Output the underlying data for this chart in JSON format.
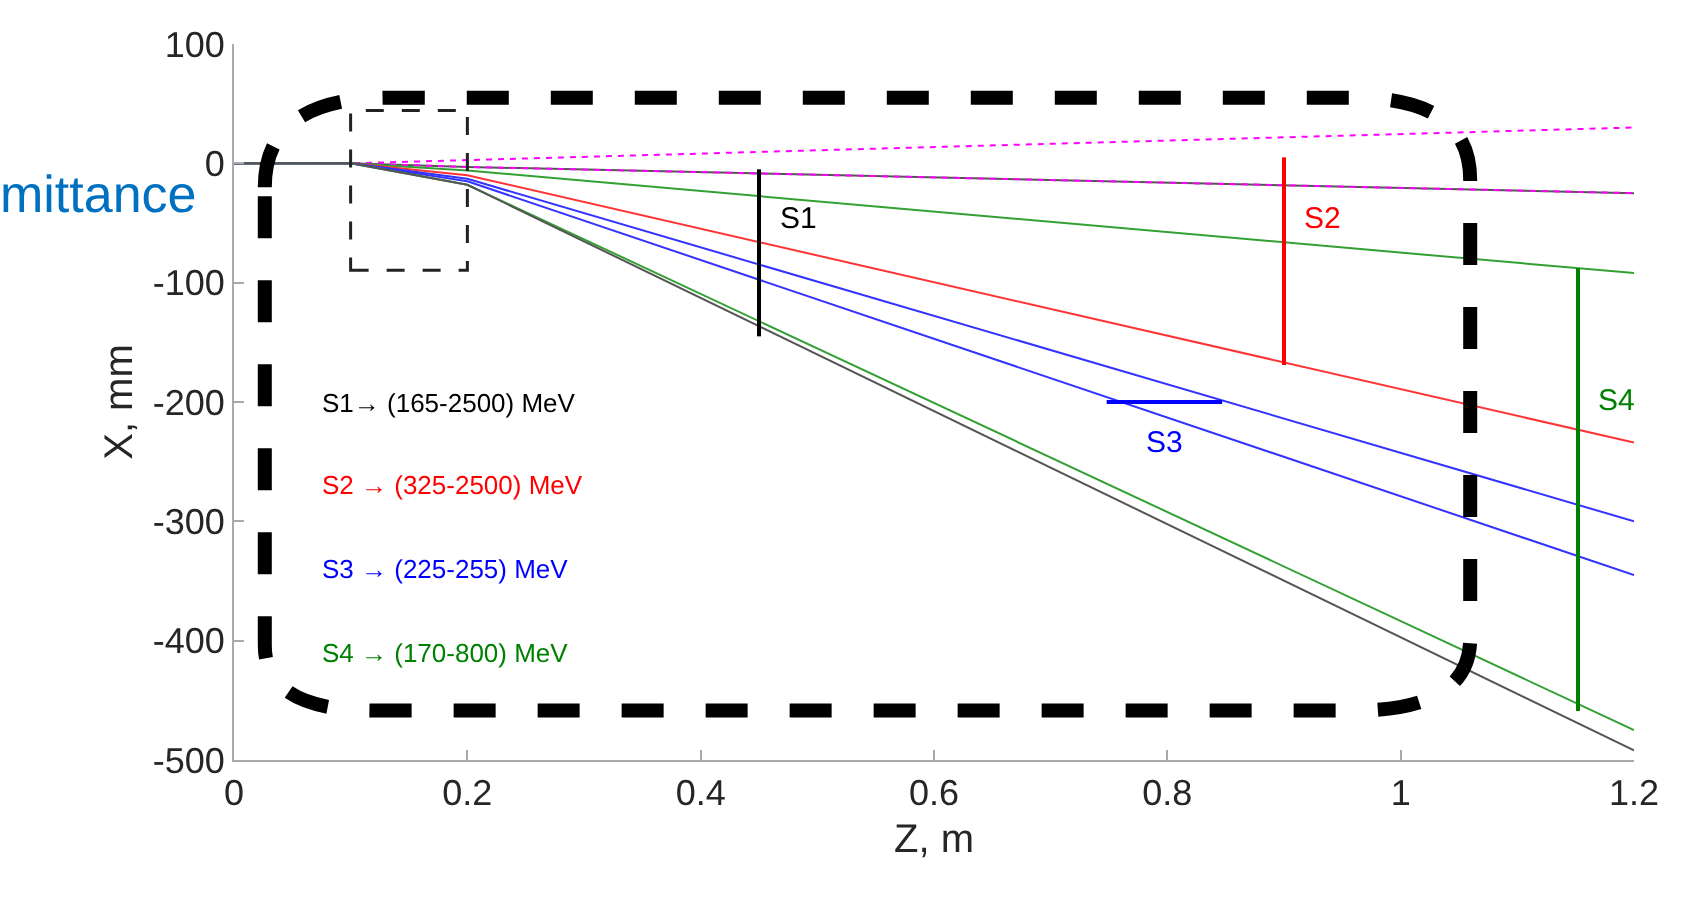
{
  "chart_data": {
    "type": "line",
    "xlabel": "Z, m",
    "ylabel": "X, mm",
    "xlim": [
      0,
      1.2
    ],
    "xticks": [
      0,
      0.2,
      0.4,
      0.6,
      0.8,
      1,
      1.2
    ],
    "ylim": [
      -500,
      100
    ],
    "yticks": [
      -500,
      -400,
      -300,
      -200,
      -100,
      0,
      100
    ],
    "legend": false,
    "marker": "none",
    "series": [
      {
        "color": "#ff00ff",
        "line_style": "dotted",
        "x": [
          0,
          0.1,
          1.2
        ],
        "values": [
          0,
          0,
          30
        ]
      },
      {
        "color": "#555555",
        "x": [
          0,
          0.1,
          0.2,
          1.2
        ],
        "values": [
          0,
          0,
          -3,
          -25
        ]
      },
      {
        "color": "#ff00ff",
        "line_style": "dotted",
        "x": [
          0,
          0.1,
          0.2,
          1.2
        ],
        "values": [
          0,
          0,
          -3,
          -25
        ]
      },
      {
        "color": "#33a033",
        "x": [
          0,
          0.1,
          0.2,
          1.2
        ],
        "values": [
          0,
          0,
          -6,
          -92
        ]
      },
      {
        "color": "#ff3333",
        "x": [
          0,
          0.1,
          0.2,
          1.2
        ],
        "values": [
          0,
          0,
          -10,
          -234
        ]
      },
      {
        "color": "#3333ff",
        "x": [
          0,
          0.1,
          0.2,
          1.2
        ],
        "values": [
          0,
          0,
          -13,
          -300
        ]
      },
      {
        "color": "#3333ff",
        "x": [
          0,
          0.1,
          0.2,
          1.2
        ],
        "values": [
          0,
          0,
          -15,
          -345
        ]
      },
      {
        "color": "#33a033",
        "x": [
          0,
          0.1,
          0.2,
          1.2
        ],
        "values": [
          0,
          0,
          -18,
          -475
        ]
      },
      {
        "color": "#555555",
        "x": [
          0,
          0.1,
          0.2,
          1.2
        ],
        "values": [
          0,
          0,
          -18,
          -492
        ]
      },
      {
        "name": "S1",
        "color": "#000000",
        "x": [
          0.45,
          0.45
        ],
        "values": [
          -5,
          -145
        ]
      },
      {
        "name": "S2",
        "color": "#ff0000",
        "x": [
          0.9,
          0.9
        ],
        "values": [
          5,
          -169
        ]
      },
      {
        "name": "S3",
        "color": "#0000ff",
        "x": [
          0.748,
          0.847
        ],
        "values": [
          -200,
          -200
        ]
      },
      {
        "name": "S4",
        "color": "#008000",
        "x": [
          1.152,
          1.152
        ],
        "values": [
          -88,
          -459
        ]
      }
    ],
    "annotations": [
      "S1→ (165-2500) MeV",
      "S2 → (325-2500) MeV",
      "S3 → (225-255) MeV",
      "S4 → (170-800) MeV",
      "mittance"
    ]
  }
}
